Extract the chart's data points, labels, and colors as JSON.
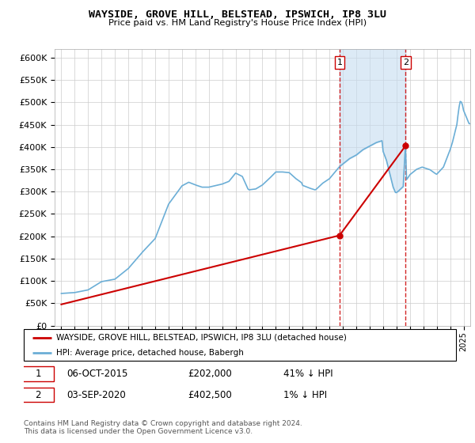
{
  "title": "WAYSIDE, GROVE HILL, BELSTEAD, IPSWICH, IP8 3LU",
  "subtitle": "Price paid vs. HM Land Registry's House Price Index (HPI)",
  "legend_line1": "WAYSIDE, GROVE HILL, BELSTEAD, IPSWICH, IP8 3LU (detached house)",
  "legend_line2": "HPI: Average price, detached house, Babergh",
  "sale1_date": "06-OCT-2015",
  "sale1_price": "£202,000",
  "sale1_hpi": "41% ↓ HPI",
  "sale1_year": 2015.75,
  "sale1_value": 202000,
  "sale2_date": "03-SEP-2020",
  "sale2_price": "£402,500",
  "sale2_hpi": "1% ↓ HPI",
  "sale2_year": 2020.67,
  "sale2_value": 402500,
  "hpi_color": "#6baed6",
  "price_color": "#cc0000",
  "marker_color": "#cc0000",
  "vline_color": "#cc0000",
  "shade_color": "#c6dcf0",
  "ylim_min": 0,
  "ylim_max": 620000,
  "xlim_min": 1994.5,
  "xlim_max": 2025.5,
  "footer": "Contains HM Land Registry data © Crown copyright and database right 2024.\nThis data is licensed under the Open Government Licence v3.0.",
  "price_data_years": [
    1995.0,
    2015.75,
    2020.67
  ],
  "price_data_values": [
    47500,
    202000,
    402500
  ]
}
